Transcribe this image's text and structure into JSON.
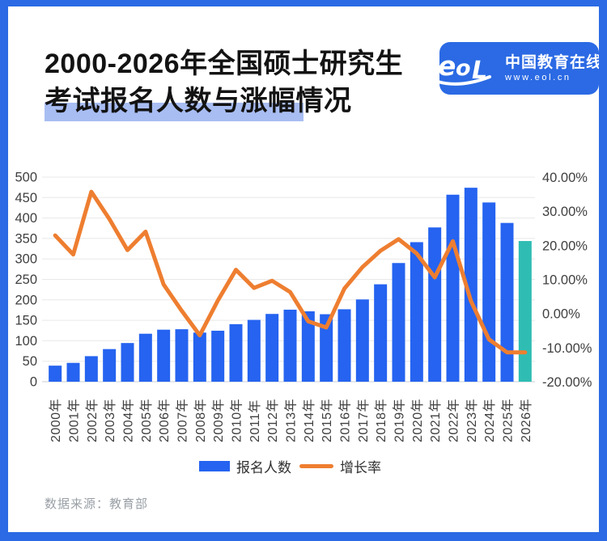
{
  "header": {
    "title_line1": "2000-2026年全国硕士研究生",
    "title_line2": "考试报名人数与涨幅情况",
    "logo": {
      "mark": "eol",
      "name": "中国教育在线",
      "url": "www.eol.cn"
    }
  },
  "chart_data": {
    "type": "bar",
    "subtype": "bar+line dual axis",
    "categories": [
      "2000年",
      "2001年",
      "2002年",
      "2003年",
      "2004年",
      "2005年",
      "2006年",
      "2007年",
      "2008年",
      "2009年",
      "2010年",
      "2011年",
      "2012年",
      "2013年",
      "2014年",
      "2015年",
      "2016年",
      "2017年",
      "2018年",
      "2019年",
      "2020年",
      "2021年",
      "2022年",
      "2023年",
      "2024年",
      "2025年",
      "2026年"
    ],
    "series": [
      {
        "name": "报名人数",
        "type": "bar",
        "axis": "left",
        "unit": "万",
        "color": "#2563f0",
        "last_value_color": "#2fbdb3",
        "values": [
          39.2,
          46,
          62.4,
          79.7,
          94.5,
          117.2,
          127.1,
          128.2,
          120,
          124.6,
          140.6,
          151.1,
          165.6,
          176,
          172,
          164.9,
          177,
          201,
          238,
          290,
          341,
          377,
          457,
          474,
          438,
          388,
          343.8
        ]
      },
      {
        "name": "增长率",
        "type": "line",
        "axis": "right",
        "unit": "%",
        "color": "#ee7e30",
        "values": [
          22.9,
          17.3,
          35.7,
          27.7,
          18.6,
          24.0,
          8.5,
          0.8,
          -6.4,
          3.8,
          12.8,
          7.5,
          9.6,
          6.3,
          -2.3,
          -4.1,
          7.3,
          13.6,
          18.4,
          21.8,
          17.6,
          10.6,
          21.2,
          3.7,
          -7.6,
          -11.4,
          -11.4
        ]
      }
    ],
    "left_axis": {
      "min": 0,
      "max": 500,
      "step": 50,
      "ticks": [
        "500",
        "450",
        "400",
        "350",
        "300",
        "250",
        "200",
        "150",
        "100",
        "50",
        "0"
      ]
    },
    "right_axis": {
      "min": -20,
      "max": 40,
      "step": 10,
      "ticks": [
        "40.00%",
        "30.00%",
        "20.00%",
        "10.00%",
        "0.00%",
        "-10.00%",
        "-20.00%"
      ]
    },
    "grid": "horizontal",
    "legend_position": "bottom",
    "x_label_rotation": -90
  },
  "legend": [
    {
      "label": "报名人数",
      "swatch": "bar"
    },
    {
      "label": "增长率",
      "swatch": "line"
    }
  ],
  "footer": {
    "source": "数据来源：教育部"
  },
  "colors": {
    "frame": "#2b6ae4",
    "logo_bg": "#2b6ae4",
    "bar": "#2563f0",
    "bar_last": "#2fbdb3",
    "line": "#ee7e30",
    "title_highlight": "#a8bdf2",
    "grid": "#e8e8e8",
    "axis_baseline": "#c9ced6",
    "axis_text": "#3f3f3f",
    "footer_text": "#9aa0a6"
  }
}
